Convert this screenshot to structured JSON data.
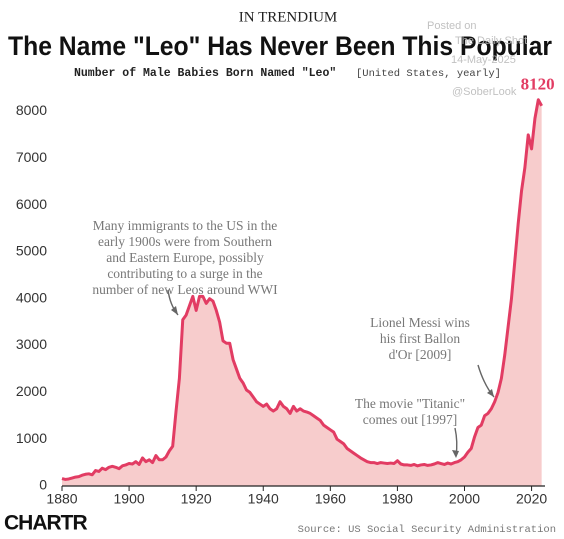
{
  "chart_data": {
    "type": "area",
    "brand": "IN TRENDIUM",
    "title": "The Name \"Leo\" Has Never Been This Popular",
    "subtitle": "Number of Male Babies Born Named \"Leo\"",
    "subtitle_note": "[United States, yearly]",
    "source": "Source: US Social Security Administration",
    "logo": "CHARTR",
    "watermark": [
      "Posted on",
      "The Daily Shot",
      "14-May-2025",
      "@SoberLook"
    ],
    "annotations": [
      [
        "Many immigrants to the US in the",
        "early 1900s were from Southern",
        "and Eastern Europe, possibly",
        "contributing to a surge in the",
        "number of new Leos around WWI"
      ],
      [
        "Lionel Messi wins",
        "his first Ballon",
        "d'Or [2009]"
      ],
      [
        "The movie \"Titanic\"",
        "comes out [1997]"
      ]
    ],
    "color": "#e23c63",
    "fill": "#f7cccc",
    "grid": false,
    "xlim": [
      1880,
      2024
    ],
    "xticks": [
      1880,
      1900,
      1920,
      1940,
      1960,
      1980,
      2000,
      2020
    ],
    "ylim": [
      0,
      8500
    ],
    "yticks": [
      0,
      1000,
      2000,
      3000,
      4000,
      5000,
      6000,
      7000,
      8000
    ],
    "x": [
      1880,
      1881,
      1882,
      1883,
      1884,
      1885,
      1886,
      1887,
      1888,
      1889,
      1890,
      1891,
      1892,
      1893,
      1894,
      1895,
      1896,
      1897,
      1898,
      1899,
      1900,
      1901,
      1902,
      1903,
      1904,
      1905,
      1906,
      1907,
      1908,
      1909,
      1910,
      1911,
      1912,
      1913,
      1914,
      1915,
      1916,
      1917,
      1918,
      1919,
      1920,
      1921,
      1922,
      1923,
      1924,
      1925,
      1926,
      1927,
      1928,
      1929,
      1930,
      1931,
      1932,
      1933,
      1934,
      1935,
      1936,
      1937,
      1938,
      1939,
      1940,
      1941,
      1942,
      1943,
      1944,
      1945,
      1946,
      1947,
      1948,
      1949,
      1950,
      1951,
      1952,
      1953,
      1954,
      1955,
      1956,
      1957,
      1958,
      1959,
      1960,
      1961,
      1962,
      1963,
      1964,
      1965,
      1966,
      1967,
      1968,
      1969,
      1970,
      1971,
      1972,
      1973,
      1974,
      1975,
      1976,
      1977,
      1978,
      1979,
      1980,
      1981,
      1982,
      1983,
      1984,
      1985,
      1986,
      1987,
      1988,
      1989,
      1990,
      1991,
      1992,
      1993,
      1994,
      1995,
      1996,
      1997,
      1998,
      1999,
      2000,
      2001,
      2002,
      2003,
      2004,
      2005,
      2006,
      2007,
      2008,
      2009,
      2010,
      2011,
      2012,
      2013,
      2014,
      2015,
      2016,
      2017,
      2018,
      2019,
      2020,
      2021,
      2022,
      2023
    ],
    "values": [
      160,
      140,
      150,
      170,
      190,
      200,
      230,
      250,
      260,
      240,
      330,
      310,
      380,
      350,
      400,
      420,
      400,
      370,
      430,
      450,
      480,
      470,
      520,
      460,
      600,
      520,
      560,
      500,
      650,
      560,
      560,
      620,
      750,
      850,
      1600,
      2300,
      3550,
      3650,
      3850,
      4050,
      3750,
      4050,
      4050,
      3900,
      4000,
      3950,
      3750,
      3500,
      3100,
      3050,
      3050,
      2700,
      2500,
      2300,
      2200,
      2050,
      2000,
      1900,
      1800,
      1750,
      1700,
      1750,
      1650,
      1600,
      1650,
      1800,
      1700,
      1650,
      1550,
      1700,
      1600,
      1650,
      1600,
      1580,
      1550,
      1500,
      1450,
      1400,
      1300,
      1250,
      1200,
      1150,
      1000,
      950,
      900,
      800,
      750,
      700,
      650,
      600,
      560,
      520,
      500,
      500,
      480,
      500,
      490,
      480,
      490,
      480,
      540,
      470,
      450,
      450,
      440,
      460,
      430,
      450,
      460,
      440,
      450,
      470,
      500,
      480,
      460,
      490,
      470,
      500,
      520,
      560,
      620,
      720,
      800,
      1050,
      1250,
      1300,
      1500,
      1550,
      1650,
      1800,
      2000,
      2300,
      2800,
      3400,
      4000,
      4800,
      5600,
      6300,
      6800,
      7500,
      7200,
      7850,
      8250,
      8120
    ]
  }
}
